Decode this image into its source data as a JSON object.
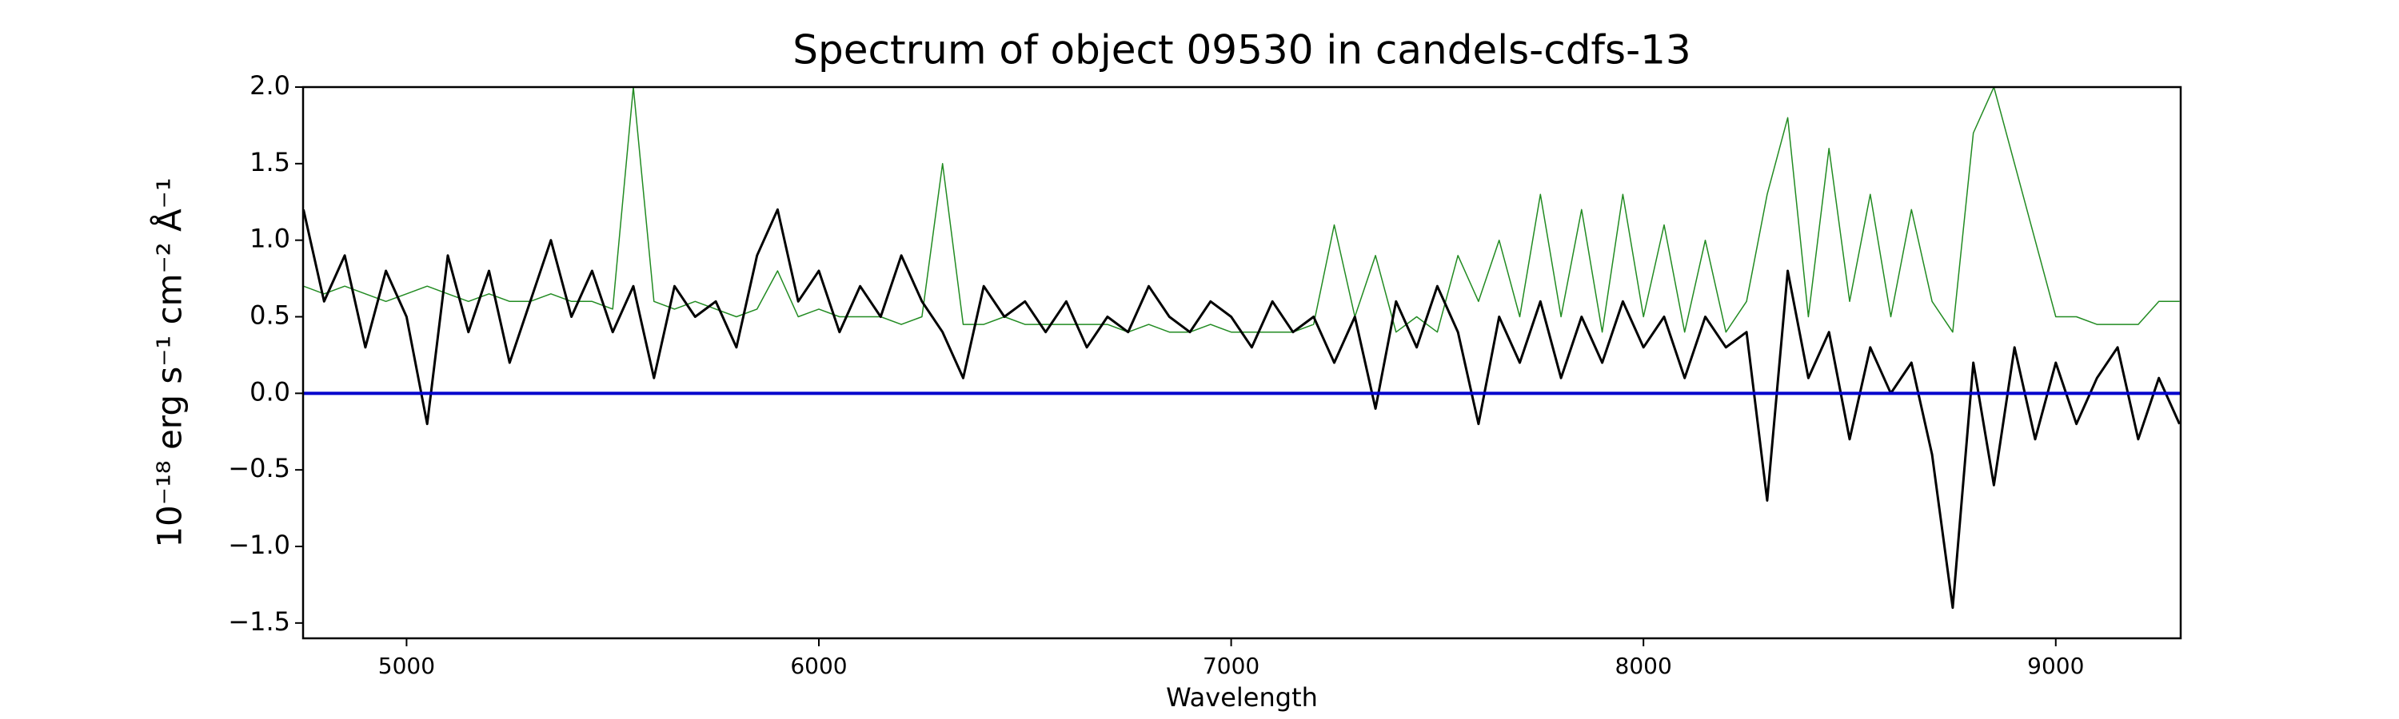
{
  "chart_data": {
    "type": "line",
    "title": "Spectrum of object 09530 in candels-cdfs-13",
    "x_label": "Wavelength",
    "y_label": "10⁻¹⁸ erg s⁻¹ cm⁻² Å⁻¹",
    "x": [
      4750,
      4800,
      4850,
      4900,
      4950,
      5000,
      5050,
      5100,
      5150,
      5200,
      5250,
      5300,
      5350,
      5400,
      5450,
      5500,
      5550,
      5600,
      5650,
      5700,
      5750,
      5800,
      5850,
      5900,
      5950,
      6000,
      6050,
      6100,
      6150,
      6200,
      6250,
      6300,
      6350,
      6400,
      6450,
      6500,
      6550,
      6600,
      6650,
      6700,
      6750,
      6800,
      6850,
      6900,
      6950,
      7000,
      7050,
      7100,
      7150,
      7200,
      7250,
      7300,
      7350,
      7400,
      7450,
      7500,
      7550,
      7600,
      7650,
      7700,
      7750,
      7800,
      7850,
      7900,
      7950,
      8000,
      8050,
      8100,
      8150,
      8200,
      8250,
      8300,
      8350,
      8400,
      8450,
      8500,
      8550,
      8600,
      8650,
      8700,
      8750,
      8800,
      8850,
      8900,
      8950,
      9000,
      9050,
      9100,
      9150,
      9200,
      9250,
      9300
    ],
    "series": [
      {
        "color": "#228b22",
        "values": [
          0.7,
          0.65,
          0.7,
          0.65,
          0.6,
          0.65,
          0.7,
          0.65,
          0.6,
          0.65,
          0.6,
          0.6,
          0.65,
          0.6,
          0.6,
          0.55,
          2.0,
          0.6,
          0.55,
          0.6,
          0.55,
          0.5,
          0.55,
          0.8,
          0.5,
          0.55,
          0.5,
          0.5,
          0.5,
          0.45,
          0.5,
          1.5,
          0.45,
          0.45,
          0.5,
          0.45,
          0.45,
          0.45,
          0.45,
          0.45,
          0.4,
          0.45,
          0.4,
          0.4,
          0.45,
          0.4,
          0.4,
          0.4,
          0.4,
          0.45,
          1.1,
          0.5,
          0.9,
          0.4,
          0.5,
          0.4,
          0.9,
          0.6,
          1.0,
          0.5,
          1.3,
          0.5,
          1.2,
          0.4,
          1.3,
          0.5,
          1.1,
          0.4,
          1.0,
          0.4,
          0.6,
          1.3,
          1.8,
          0.5,
          1.6,
          0.6,
          1.3,
          0.5,
          1.2,
          0.6,
          0.4,
          1.7,
          2.0,
          1.5,
          1.0,
          0.5,
          0.5,
          0.45,
          0.45,
          0.45,
          0.6,
          0.6
        ]
      },
      {
        "color": "#000000",
        "values": [
          1.2,
          0.6,
          0.9,
          0.3,
          0.8,
          0.5,
          -0.2,
          0.9,
          0.4,
          0.8,
          0.2,
          0.6,
          1.0,
          0.5,
          0.8,
          0.4,
          0.7,
          0.1,
          0.7,
          0.5,
          0.6,
          0.3,
          0.9,
          1.2,
          0.6,
          0.8,
          0.4,
          0.7,
          0.5,
          0.9,
          0.6,
          0.4,
          0.1,
          0.7,
          0.5,
          0.6,
          0.4,
          0.6,
          0.3,
          0.5,
          0.4,
          0.7,
          0.5,
          0.4,
          0.6,
          0.5,
          0.3,
          0.6,
          0.4,
          0.5,
          0.2,
          0.5,
          -0.1,
          0.6,
          0.3,
          0.7,
          0.4,
          -0.2,
          0.5,
          0.2,
          0.6,
          0.1,
          0.5,
          0.2,
          0.6,
          0.3,
          0.5,
          0.1,
          0.5,
          0.3,
          0.4,
          -0.7,
          0.8,
          0.1,
          0.4,
          -0.3,
          0.3,
          0.0,
          0.2,
          -0.4,
          -1.4,
          0.2,
          -0.6,
          0.3,
          -0.3,
          0.2,
          -0.2,
          0.1,
          0.3,
          -0.3,
          0.1,
          -0.2
        ]
      }
    ],
    "hline": {
      "value": 0,
      "color": "#0000cc"
    },
    "xlim": [
      4749,
      9303
    ],
    "xticks": [
      5000,
      6000,
      7000,
      8000,
      9000
    ],
    "ylim": [
      -1.6,
      2.0
    ],
    "yticks": [
      {
        "value": -1.5,
        "label": "−1.5"
      },
      {
        "value": -1.0,
        "label": "−1.0"
      },
      {
        "value": -0.5,
        "label": "−0.5"
      },
      {
        "value": 0,
        "label": "0.0"
      },
      {
        "value": 0.5,
        "label": "0.5"
      },
      {
        "value": 1.0,
        "label": "1.0"
      },
      {
        "value": 1.5,
        "label": "1.5"
      },
      {
        "value": 2.0,
        "label": "2.0"
      }
    ]
  }
}
